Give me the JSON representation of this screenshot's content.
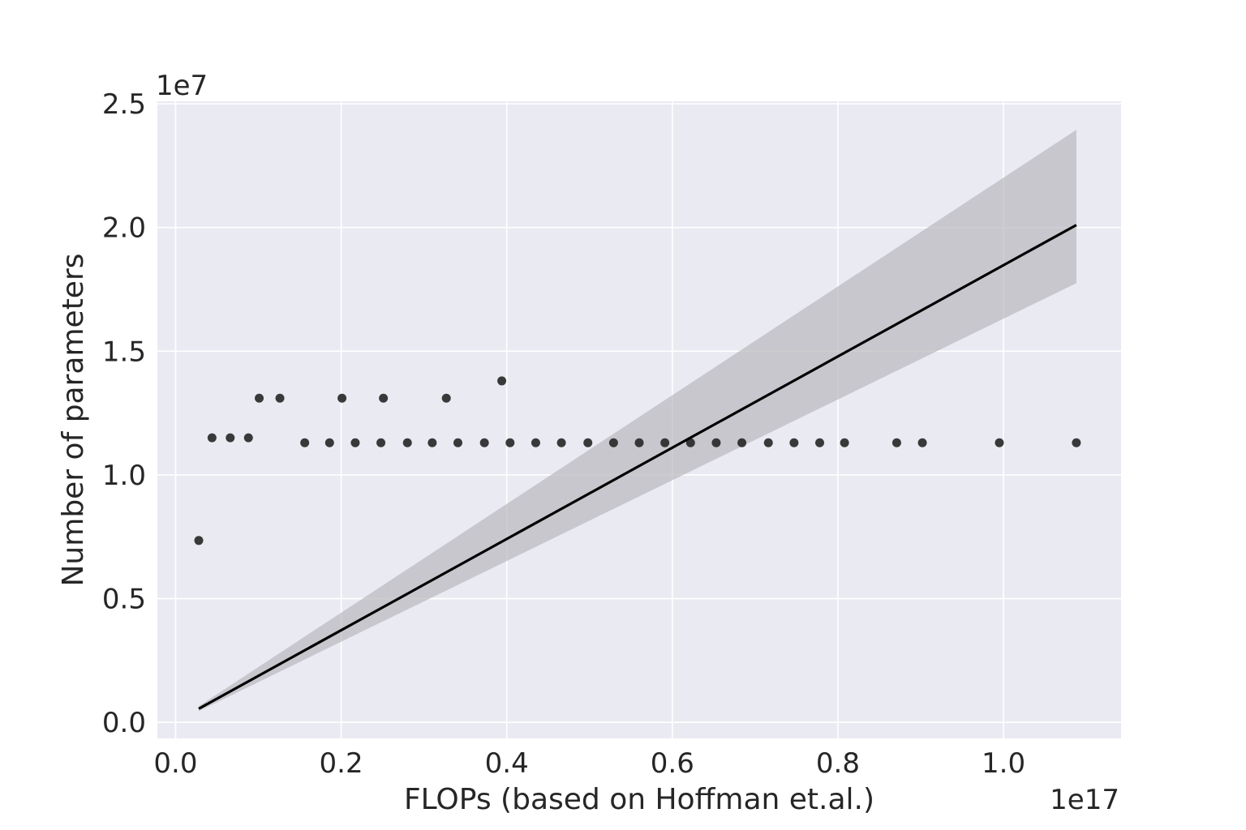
{
  "chart_data": {
    "type": "scatter",
    "title": "",
    "xlabel": "FLOPs (based on Hoffman et.al.)",
    "ylabel": "Number of parameters",
    "x_offset_text": "1e17",
    "y_offset_text": "1e7",
    "x_ticks": [
      0.0,
      0.2,
      0.4,
      0.6,
      0.8,
      1.0
    ],
    "x_tick_labels": [
      "0.0",
      "0.2",
      "0.4",
      "0.6",
      "0.8",
      "1.0"
    ],
    "y_ticks": [
      0.0,
      0.5,
      1.0,
      1.5,
      2.0,
      2.5
    ],
    "y_tick_labels": [
      "0.0",
      "0.5",
      "1.0",
      "1.5",
      "2.0",
      "2.5"
    ],
    "xlim": [
      -0.022,
      1.142
    ],
    "ylim": [
      -0.065,
      2.51
    ],
    "grid": true,
    "points": [
      {
        "x": 0.028,
        "y": 0.735
      },
      {
        "x": 0.044,
        "y": 1.15
      },
      {
        "x": 0.066,
        "y": 1.15
      },
      {
        "x": 0.088,
        "y": 1.15
      },
      {
        "x": 0.101,
        "y": 1.31
      },
      {
        "x": 0.126,
        "y": 1.31
      },
      {
        "x": 0.156,
        "y": 1.13
      },
      {
        "x": 0.186,
        "y": 1.13
      },
      {
        "x": 0.201,
        "y": 1.31
      },
      {
        "x": 0.217,
        "y": 1.13
      },
      {
        "x": 0.248,
        "y": 1.13
      },
      {
        "x": 0.251,
        "y": 1.31
      },
      {
        "x": 0.28,
        "y": 1.13
      },
      {
        "x": 0.31,
        "y": 1.13
      },
      {
        "x": 0.327,
        "y": 1.31
      },
      {
        "x": 0.341,
        "y": 1.13
      },
      {
        "x": 0.373,
        "y": 1.13
      },
      {
        "x": 0.394,
        "y": 1.38
      },
      {
        "x": 0.404,
        "y": 1.13
      },
      {
        "x": 0.435,
        "y": 1.13
      },
      {
        "x": 0.466,
        "y": 1.13
      },
      {
        "x": 0.498,
        "y": 1.13
      },
      {
        "x": 0.529,
        "y": 1.13
      },
      {
        "x": 0.56,
        "y": 1.13
      },
      {
        "x": 0.591,
        "y": 1.13
      },
      {
        "x": 0.622,
        "y": 1.13
      },
      {
        "x": 0.653,
        "y": 1.13
      },
      {
        "x": 0.684,
        "y": 1.13
      },
      {
        "x": 0.716,
        "y": 1.13
      },
      {
        "x": 0.747,
        "y": 1.13
      },
      {
        "x": 0.778,
        "y": 1.13
      },
      {
        "x": 0.808,
        "y": 1.13
      },
      {
        "x": 0.871,
        "y": 1.13
      },
      {
        "x": 0.902,
        "y": 1.13
      },
      {
        "x": 0.995,
        "y": 1.13
      },
      {
        "x": 1.088,
        "y": 1.13
      }
    ],
    "regression_line": [
      {
        "x": 0.028,
        "y": 0.055
      },
      {
        "x": 1.088,
        "y": 2.01
      }
    ],
    "confidence_band": {
      "x": [
        0.028,
        1.088
      ],
      "upper": [
        0.065,
        2.395
      ],
      "lower": [
        0.045,
        1.775
      ]
    },
    "colors": {
      "background": "#eaeaf2",
      "grid": "#ffffff",
      "points": "#262626",
      "line": "#000000",
      "band": "#b4b4b9"
    }
  }
}
